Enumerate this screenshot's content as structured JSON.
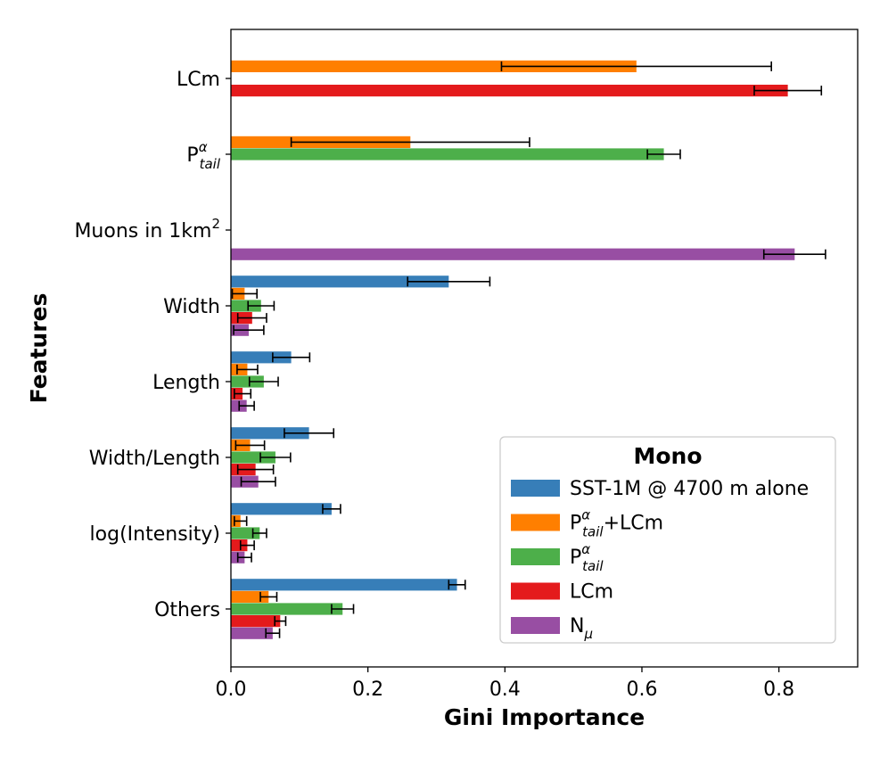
{
  "chart_data": {
    "type": "bar",
    "orientation": "horizontal",
    "xlabel": "Gini Importance",
    "ylabel": "Features",
    "xlim": [
      0,
      0.915
    ],
    "xticks": [
      "0.0",
      "0.2",
      "0.4",
      "0.6",
      "0.8"
    ],
    "xtick_values": [
      0,
      0.2,
      0.4,
      0.6,
      0.8
    ],
    "categories": [
      {
        "id": "lcm",
        "label": "LCm"
      },
      {
        "id": "ptail",
        "label": "P",
        "sup": "α",
        "sub": "tail"
      },
      {
        "id": "muons",
        "label": "Muons in 1km",
        "sup": "2"
      },
      {
        "id": "width",
        "label": "Width"
      },
      {
        "id": "length",
        "label": "Length"
      },
      {
        "id": "wl",
        "label": "Width/Length"
      },
      {
        "id": "logint",
        "label": "log(Intensity)"
      },
      {
        "id": "others",
        "label": "Others"
      }
    ],
    "series": [
      {
        "name": "SST-1M @ 4700 m alone",
        "color": "#377eb8",
        "values": [
          null,
          null,
          null,
          0.318,
          0.088,
          0.114,
          0.147,
          0.33
        ],
        "errors": [
          null,
          null,
          null,
          0.06,
          0.027,
          0.036,
          0.013,
          0.012
        ]
      },
      {
        "name": "P tail α + LCm",
        "label_main": "P",
        "label_sup": "α",
        "label_sub": "tail",
        "label_suffix": "+LCm",
        "color": "#ff7f00",
        "values": [
          0.592,
          0.262,
          null,
          0.02,
          0.024,
          0.028,
          0.014,
          0.055
        ],
        "errors": [
          0.197,
          0.174,
          null,
          0.018,
          0.015,
          0.021,
          0.009,
          0.012
        ]
      },
      {
        "name": "P tail α",
        "label_main": "P",
        "label_sup": "α",
        "label_sub": "tail",
        "label_suffix": "",
        "color": "#4daf4a",
        "values": [
          null,
          0.632,
          null,
          0.044,
          0.048,
          0.065,
          0.042,
          0.163
        ],
        "errors": [
          null,
          0.024,
          null,
          0.019,
          0.021,
          0.022,
          0.01,
          0.016
        ]
      },
      {
        "name": "LCm",
        "color": "#e41a1c",
        "values": [
          0.813,
          null,
          null,
          0.031,
          0.017,
          0.036,
          0.024,
          0.072
        ],
        "errors": [
          0.049,
          null,
          null,
          0.021,
          0.012,
          0.026,
          0.01,
          0.008
        ]
      },
      {
        "name": "N μ",
        "label_main": "N",
        "label_sub": "μ",
        "label_suffix": "",
        "color": "#984ea3",
        "values": [
          null,
          null,
          0.823,
          0.026,
          0.023,
          0.04,
          0.02,
          0.061
        ],
        "errors": [
          null,
          null,
          0.045,
          0.022,
          0.011,
          0.025,
          0.01,
          0.01
        ]
      }
    ],
    "legend": {
      "title": "Mono",
      "position": "lower-right"
    },
    "grid": false
  }
}
